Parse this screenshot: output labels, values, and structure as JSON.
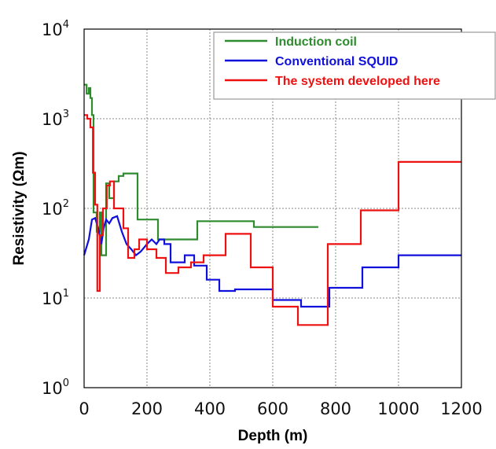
{
  "chart_data": {
    "type": "line",
    "xlabel": "Depth (m)",
    "ylabel": "Resistivity (Ωm)",
    "xlim": [
      0,
      1200
    ],
    "ylim": [
      1,
      10000
    ],
    "yscale": "log",
    "grid": true,
    "legend_position": "top-right",
    "x_ticks": [
      "0",
      "200",
      "400",
      "600",
      "800",
      "1000",
      "1200"
    ],
    "y_ticks": [
      {
        "base": "10",
        "exp": "0",
        "value": 1
      },
      {
        "base": "10",
        "exp": "1",
        "value": 10
      },
      {
        "base": "10",
        "exp": "2",
        "value": 100
      },
      {
        "base": "10",
        "exp": "3",
        "value": 1000
      },
      {
        "base": "10",
        "exp": "4",
        "value": 10000
      }
    ],
    "series": [
      {
        "name": "Induction coil",
        "color": "#2e8b2e",
        "points": [
          [
            0,
            2400
          ],
          [
            8,
            2400
          ],
          [
            8,
            1900
          ],
          [
            15,
            1900
          ],
          [
            15,
            2200
          ],
          [
            20,
            2200
          ],
          [
            20,
            1700
          ],
          [
            25,
            1700
          ],
          [
            25,
            1100
          ],
          [
            30,
            1100
          ],
          [
            30,
            90
          ],
          [
            40,
            90
          ],
          [
            40,
            55
          ],
          [
            50,
            55
          ],
          [
            50,
            90
          ],
          [
            55,
            90
          ],
          [
            55,
            30
          ],
          [
            70,
            30
          ],
          [
            70,
            190
          ],
          [
            80,
            190
          ],
          [
            80,
            130
          ],
          [
            95,
            130
          ],
          [
            95,
            200
          ],
          [
            110,
            200
          ],
          [
            110,
            230
          ],
          [
            125,
            230
          ],
          [
            125,
            245
          ],
          [
            170,
            245
          ],
          [
            170,
            75
          ],
          [
            235,
            75
          ],
          [
            235,
            45
          ],
          [
            360,
            45
          ],
          [
            360,
            72
          ],
          [
            540,
            72
          ],
          [
            540,
            62
          ],
          [
            745,
            62
          ]
        ]
      },
      {
        "name": "Conventional SQUID",
        "color": "#1010dd",
        "points": [
          [
            0,
            30
          ],
          [
            15,
            45
          ],
          [
            25,
            75
          ],
          [
            35,
            78
          ],
          [
            45,
            60
          ],
          [
            55,
            40
          ],
          [
            62,
            60
          ],
          [
            70,
            75
          ],
          [
            80,
            68
          ],
          [
            90,
            78
          ],
          [
            105,
            82
          ],
          [
            120,
            55
          ],
          [
            135,
            40
          ],
          [
            150,
            35
          ],
          [
            165,
            30
          ],
          [
            180,
            33
          ],
          [
            200,
            40
          ],
          [
            215,
            45
          ],
          [
            230,
            40
          ],
          [
            240,
            45
          ],
          [
            255,
            45
          ],
          [
            255,
            40
          ],
          [
            275,
            40
          ],
          [
            275,
            25
          ],
          [
            320,
            25
          ],
          [
            320,
            30
          ],
          [
            350,
            30
          ],
          [
            350,
            23
          ],
          [
            390,
            23
          ],
          [
            390,
            16
          ],
          [
            430,
            16
          ],
          [
            430,
            12
          ],
          [
            480,
            12
          ],
          [
            480,
            12.5
          ],
          [
            600,
            12.5
          ],
          [
            600,
            9.5
          ],
          [
            690,
            9.5
          ],
          [
            690,
            8
          ],
          [
            780,
            8
          ],
          [
            780,
            13
          ],
          [
            885,
            13
          ],
          [
            885,
            22
          ],
          [
            1000,
            22
          ],
          [
            1000,
            30
          ],
          [
            1200,
            30
          ]
        ]
      },
      {
        "name": "The system developed here",
        "color": "#ee1111",
        "points": [
          [
            0,
            1100
          ],
          [
            10,
            1100
          ],
          [
            10,
            1000
          ],
          [
            20,
            1000
          ],
          [
            20,
            800
          ],
          [
            28,
            800
          ],
          [
            28,
            250
          ],
          [
            35,
            250
          ],
          [
            35,
            110
          ],
          [
            42,
            110
          ],
          [
            42,
            12
          ],
          [
            50,
            12
          ],
          [
            50,
            50
          ],
          [
            60,
            50
          ],
          [
            60,
            100
          ],
          [
            72,
            100
          ],
          [
            72,
            180
          ],
          [
            82,
            180
          ],
          [
            82,
            200
          ],
          [
            95,
            200
          ],
          [
            95,
            100
          ],
          [
            125,
            100
          ],
          [
            125,
            60
          ],
          [
            140,
            60
          ],
          [
            140,
            28
          ],
          [
            160,
            28
          ],
          [
            160,
            35
          ],
          [
            175,
            35
          ],
          [
            175,
            45
          ],
          [
            200,
            45
          ],
          [
            200,
            35
          ],
          [
            230,
            35
          ],
          [
            230,
            28
          ],
          [
            260,
            28
          ],
          [
            260,
            19
          ],
          [
            300,
            19
          ],
          [
            300,
            22
          ],
          [
            340,
            22
          ],
          [
            340,
            25
          ],
          [
            380,
            25
          ],
          [
            380,
            30
          ],
          [
            450,
            30
          ],
          [
            450,
            52
          ],
          [
            530,
            52
          ],
          [
            530,
            22
          ],
          [
            600,
            22
          ],
          [
            600,
            8
          ],
          [
            680,
            8
          ],
          [
            680,
            5
          ],
          [
            775,
            5
          ],
          [
            775,
            40
          ],
          [
            880,
            40
          ],
          [
            880,
            95
          ],
          [
            1000,
            95
          ],
          [
            1000,
            330
          ],
          [
            1200,
            330
          ]
        ]
      }
    ]
  }
}
